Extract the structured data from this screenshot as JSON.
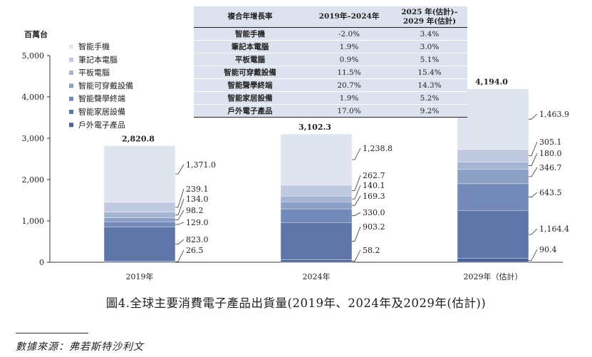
{
  "chart_data": {
    "type": "bar",
    "stacked": true,
    "ylabel": "百萬台",
    "ylim": [
      0,
      5000
    ],
    "yticks": [
      "0",
      "1,000",
      "2,000",
      "3,000",
      "4,000",
      "5,000"
    ],
    "categories": [
      "2019年",
      "2024年",
      "2029年（估計）"
    ],
    "totals": [
      "2,820.8",
      "3,102.3",
      "4,194.0"
    ],
    "series": [
      {
        "name": "戶外電子產品",
        "color": "#4a6296",
        "values": [
          26.5,
          58.2,
          90.4
        ],
        "labels": [
          "26.5",
          "58.2",
          "90.4"
        ]
      },
      {
        "name": "智能家居設備",
        "color": "#5e77a8",
        "values": [
          823.0,
          903.2,
          1164.4
        ],
        "labels": [
          "823.0",
          "903.2",
          "1,164.4"
        ]
      },
      {
        "name": "智能聲學終端",
        "color": "#7389b7",
        "values": [
          129.0,
          330.0,
          643.5
        ],
        "labels": [
          "129.0",
          "330.0",
          "643.5"
        ]
      },
      {
        "name": "智能可穿戴設備",
        "color": "#8c9fc5",
        "values": [
          98.2,
          169.3,
          346.7
        ],
        "labels": [
          "98.2",
          "169.3",
          "346.7"
        ]
      },
      {
        "name": "平板電腦",
        "color": "#a5b4d2",
        "values": [
          134.0,
          140.1,
          180.0
        ],
        "labels": [
          "134.0",
          "140.1",
          "180.0"
        ]
      },
      {
        "name": "筆記本電腦",
        "color": "#bfcae0",
        "values": [
          239.1,
          262.7,
          305.1
        ],
        "labels": [
          "239.1",
          "262.7",
          "305.1"
        ]
      },
      {
        "name": "智能手機",
        "color": "#dfe4ef",
        "values": [
          1371.0,
          1238.8,
          1463.9
        ],
        "labels": [
          "1,371.0",
          "1,238.8",
          "1,463.9"
        ]
      }
    ],
    "legend_placement": "top-left",
    "grid": false
  },
  "cagr_table": {
    "header": [
      "複合年增長率",
      "2019年–2024年",
      "2025 年(估計)–",
      "2029 年(估計)"
    ],
    "rows": [
      {
        "name": "智能手機",
        "a": "-2.0%",
        "b": "3.4%"
      },
      {
        "name": "筆記本電腦",
        "a": "1.9%",
        "b": "3.0%"
      },
      {
        "name": "平板電腦",
        "a": "0.9%",
        "b": "5.1%"
      },
      {
        "name": "智能可穿戴設備",
        "a": "11.5%",
        "b": "15.4%"
      },
      {
        "name": "智能聲學終端",
        "a": "20.7%",
        "b": "14.3%"
      },
      {
        "name": "智能家居設備",
        "a": "1.9%",
        "b": "5.2%"
      },
      {
        "name": "戶外電子產品",
        "a": "17.0%",
        "b": "9.2%"
      }
    ]
  },
  "caption": "圖4.全球主要消費電子產品出貨量(2019年、2024年及2029年(估計))",
  "source": "數據來源：弗若斯特沙利文"
}
